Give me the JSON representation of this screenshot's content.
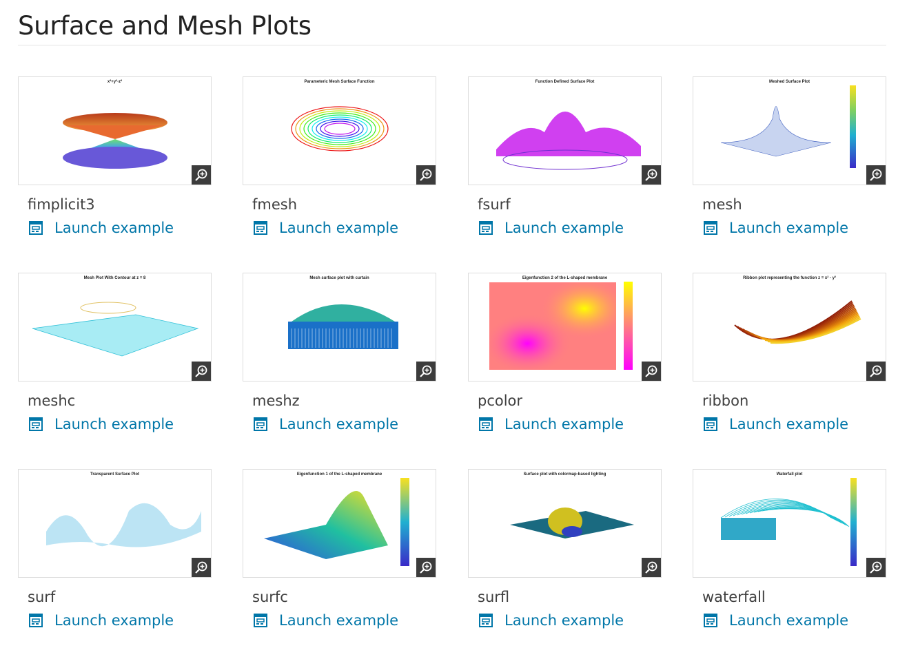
{
  "page": {
    "title": "Surface and Mesh Plots"
  },
  "launch_label": "Launch example",
  "colors": {
    "link": "#0076a8",
    "zoom_bg": "#3c3c3c"
  },
  "cards": [
    {
      "name": "fimplicit3",
      "thumb_title": "x²+y²-z²",
      "style": "cone"
    },
    {
      "name": "fmesh",
      "thumb_title": "Parameteric Mesh Surface Function",
      "style": "rings"
    },
    {
      "name": "fsurf",
      "thumb_title": "Function Defined Surface Plot",
      "style": "surf-magenta"
    },
    {
      "name": "mesh",
      "thumb_title": "Meshed Surface Plot",
      "style": "peak"
    },
    {
      "name": "meshc",
      "thumb_title": "Mesh Plot With Contour at z = 8",
      "style": "cyan"
    },
    {
      "name": "meshz",
      "thumb_title": "Mesh surface plot with curtain",
      "style": "curtain"
    },
    {
      "name": "pcolor",
      "thumb_title": "Eigenfunction 2 of the L-shaped membrane",
      "style": "pcolor"
    },
    {
      "name": "ribbon",
      "thumb_title": "Ribbon plot representing the function z = x² - y²",
      "style": "ribbon"
    },
    {
      "name": "surf",
      "thumb_title": "Transparent Surface Plot",
      "style": "transparent"
    },
    {
      "name": "surfc",
      "thumb_title": "Eigenfunction 1 of the L-shaped membrane",
      "style": "surfc"
    },
    {
      "name": "surfl",
      "thumb_title": "Surface plot with colormap-based lighting",
      "style": "surfl"
    },
    {
      "name": "waterfall",
      "thumb_title": "Waterfall plot",
      "style": "waterfall"
    }
  ]
}
